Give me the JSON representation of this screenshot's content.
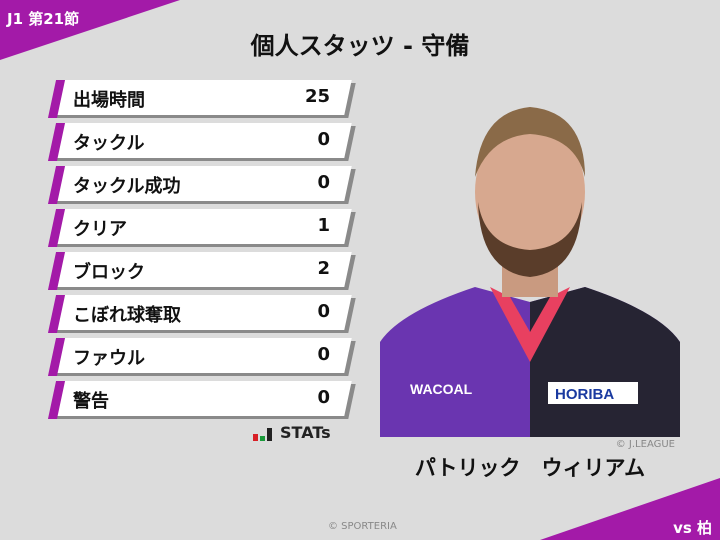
{
  "header": {
    "round": "J1 第21節",
    "title": "個人スタッツ - 守備"
  },
  "stats": [
    {
      "label": "出場時間",
      "value": "25"
    },
    {
      "label": "タックル",
      "value": "0"
    },
    {
      "label": "タックル成功",
      "value": "0"
    },
    {
      "label": "クリア",
      "value": "1"
    },
    {
      "label": "ブロック",
      "value": "2"
    },
    {
      "label": "こぼれ球奪取",
      "value": "0"
    },
    {
      "label": "ファウル",
      "value": "0"
    },
    {
      "label": "警告",
      "value": "0"
    }
  ],
  "brand": {
    "stats_logo": "STATs",
    "copyright": "© SPORTERIA"
  },
  "player": {
    "name": "パトリック　ウィリアム",
    "photo_credit": "© J.LEAGUE",
    "jersey_sponsors": [
      "WACOAL",
      "HORIBA"
    ]
  },
  "match": {
    "opponent": "vs 柏"
  },
  "colors": {
    "accent": "#a31aa8",
    "background": "#dcdcdc"
  }
}
